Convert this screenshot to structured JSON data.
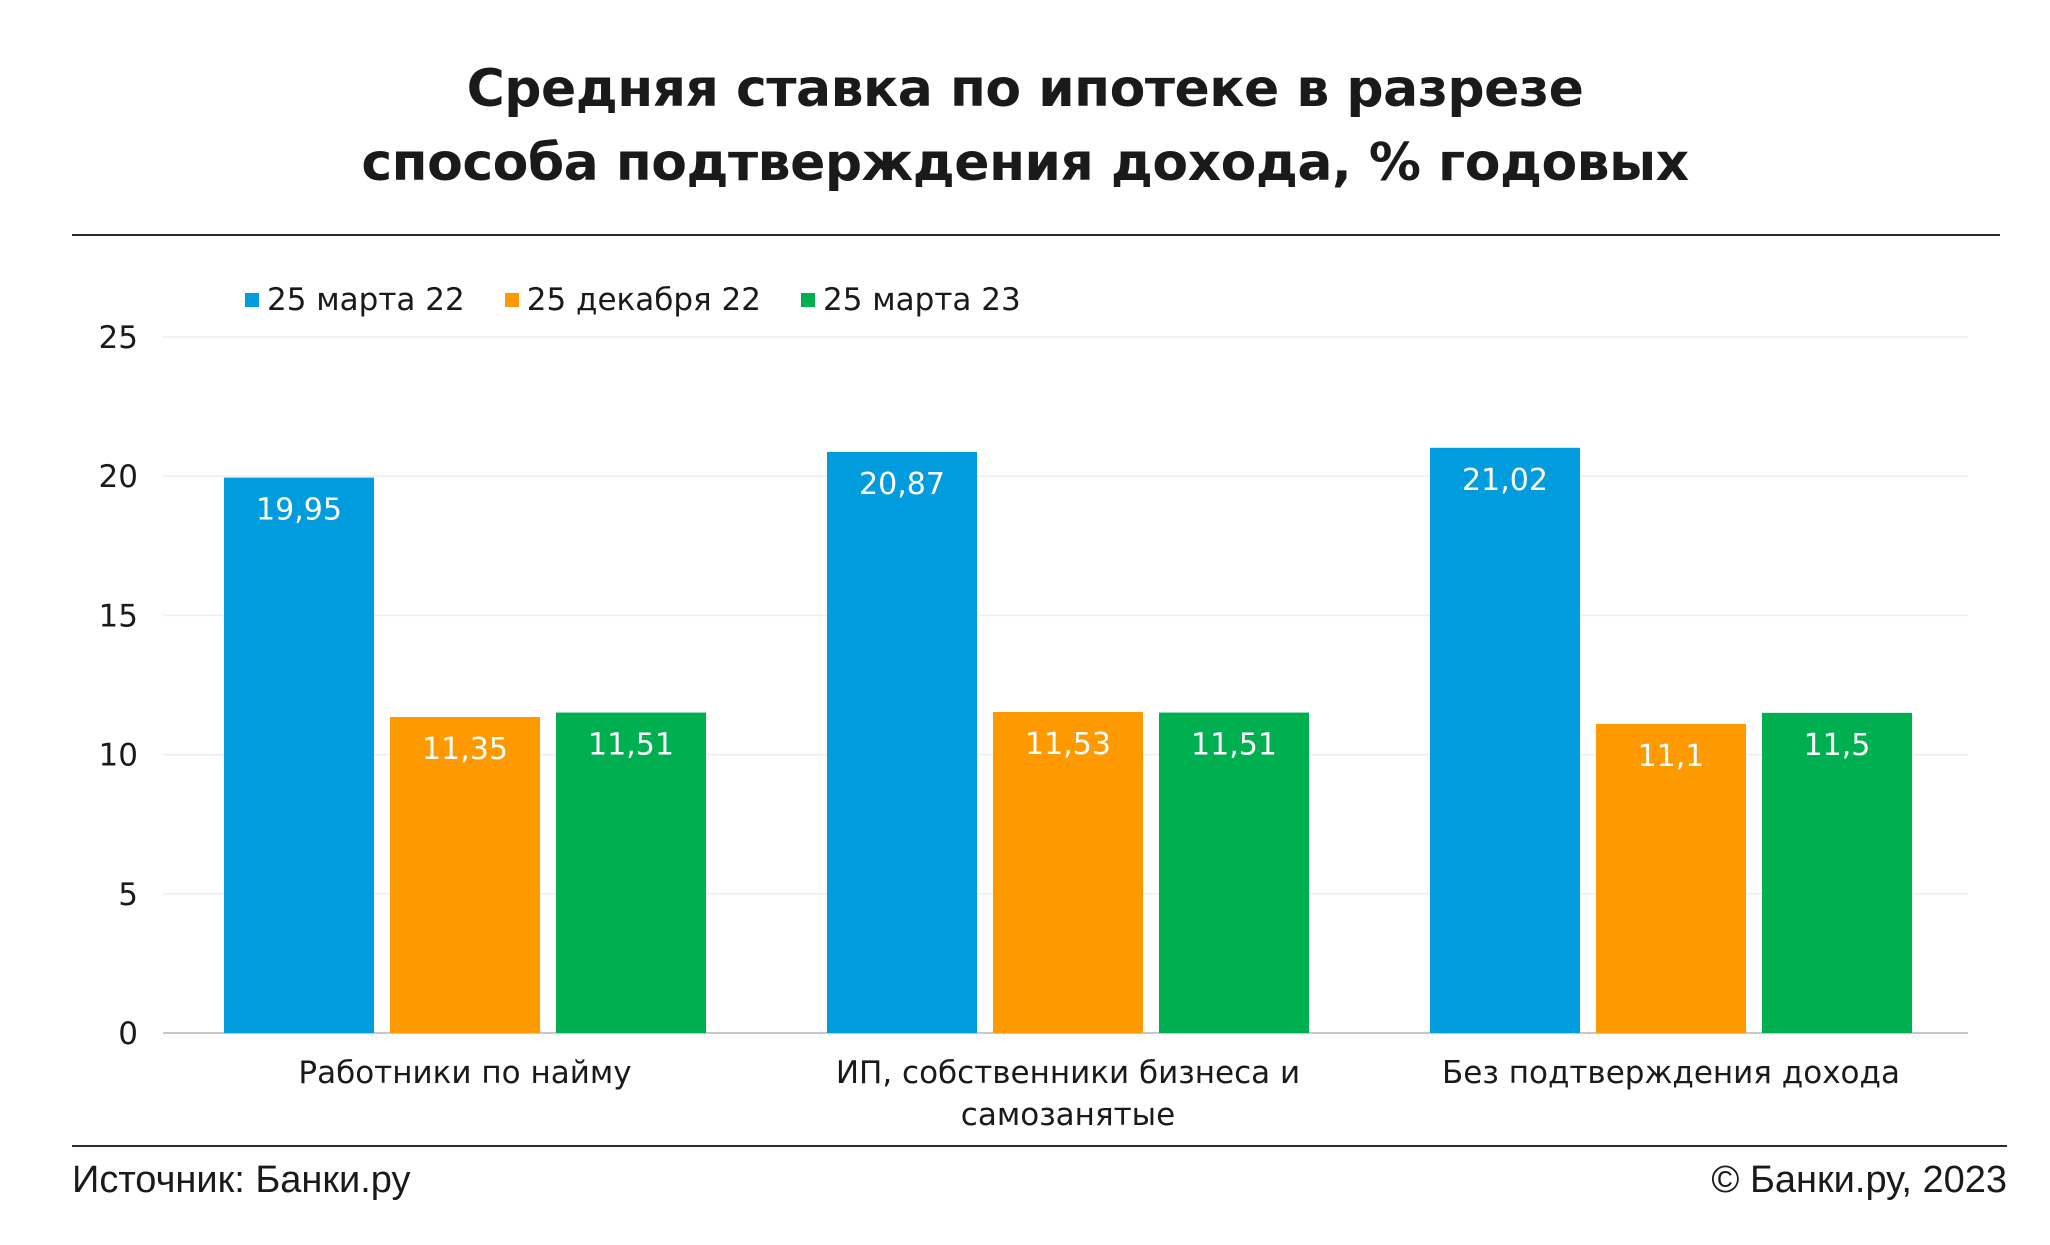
{
  "title_lines": [
    "Средняя ставка по ипотеке в разрезе",
    "способа подтверждения дохода, % годовых"
  ],
  "colors": {
    "series_1": "#009cde",
    "series_2": "#fe9900",
    "series_3": "#00b050",
    "grid": "#eeeeee",
    "axis": "#c8c8c8",
    "bar_label": "#ffffff"
  },
  "chart_data": {
    "type": "bar",
    "title": "Средняя ставка по ипотеке в разрезе способа подтверждения дохода, % годовых",
    "xlabel": "",
    "ylabel": "",
    "ylim": [
      0,
      25
    ],
    "yticks": [
      "0",
      "5",
      "10",
      "15",
      "20",
      "25"
    ],
    "grid": true,
    "legend_position": "top-left",
    "categories": [
      [
        "Работники по найму"
      ],
      [
        "ИП, собственники бизнеса и",
        "самозанятые"
      ],
      [
        "Без подтверждения дохода"
      ]
    ],
    "series": [
      {
        "name": "25 марта 22",
        "values": [
          19.95,
          20.87,
          21.02
        ],
        "labels": [
          "19,95",
          "20,87",
          "21,02"
        ]
      },
      {
        "name": "25 декабря 22",
        "values": [
          11.35,
          11.53,
          11.1
        ],
        "labels": [
          "11,35",
          "11,53",
          "11,1"
        ]
      },
      {
        "name": "25 марта 23",
        "values": [
          11.51,
          11.51,
          11.5
        ],
        "labels": [
          "11,51",
          "11,51",
          "11,5"
        ]
      }
    ]
  },
  "footer": {
    "source": "Источник: Банки.ру",
    "copyright": "© Банки.ру, 2023"
  }
}
